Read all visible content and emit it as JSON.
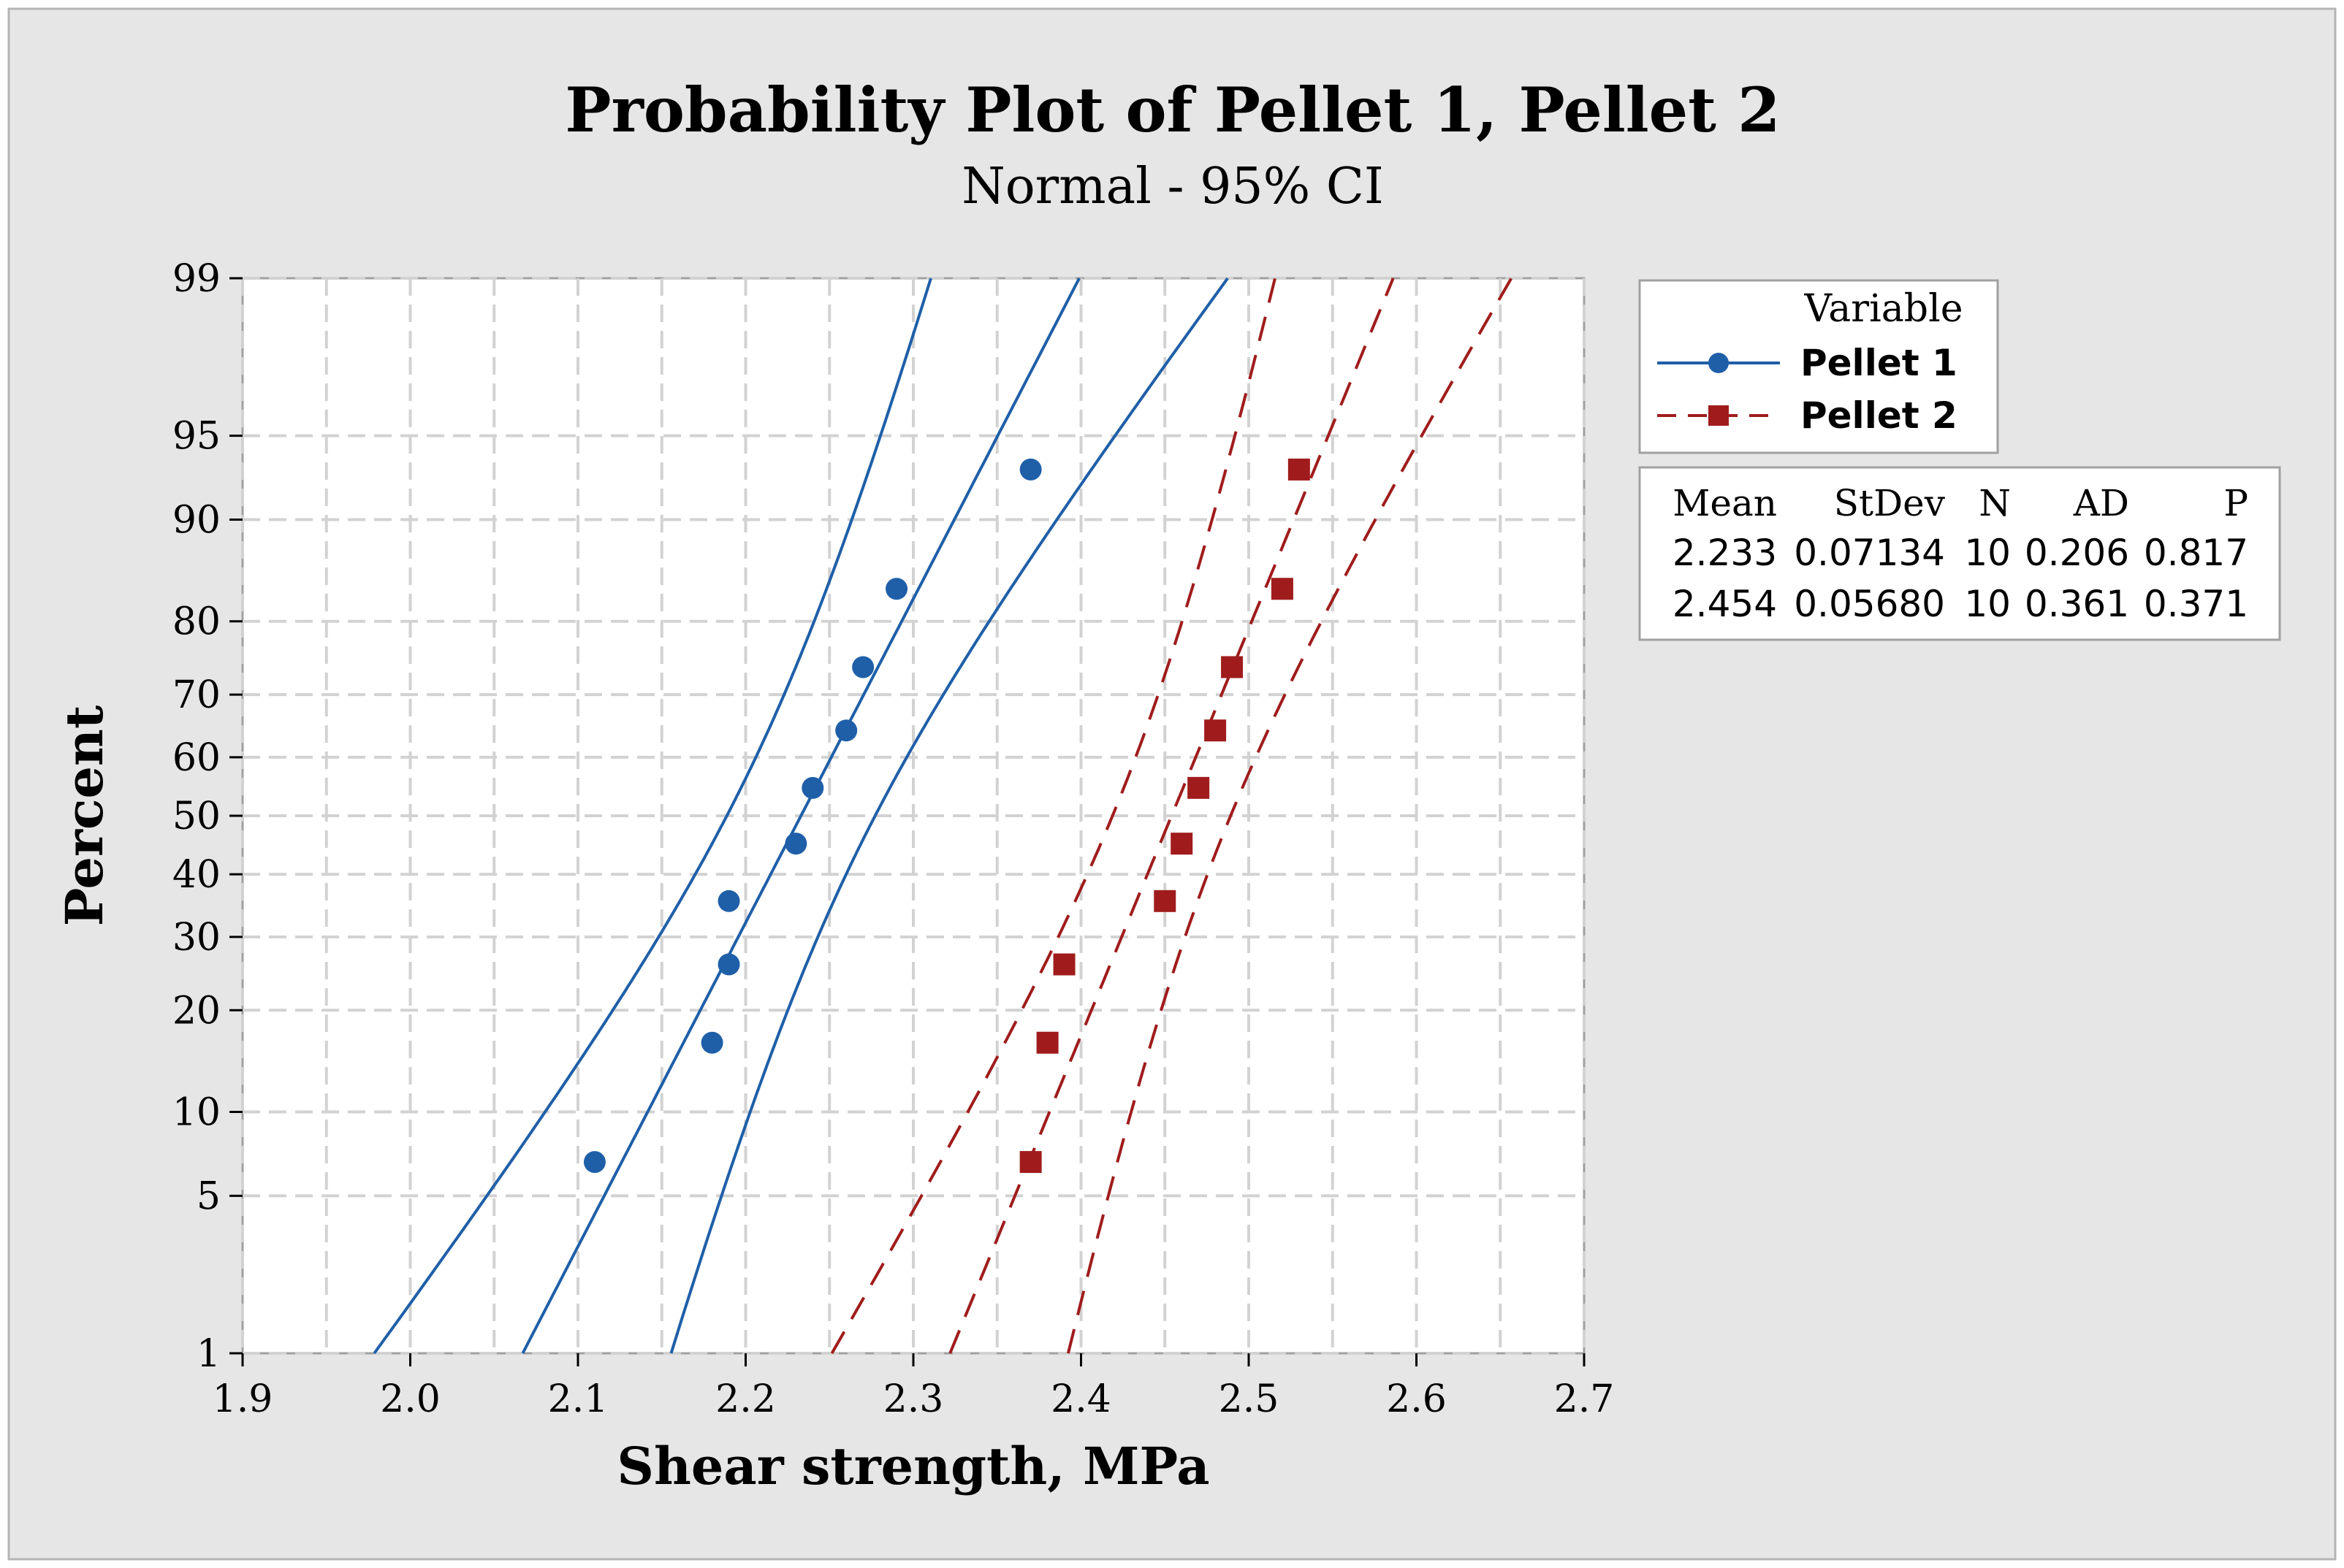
{
  "chart_data": {
    "type": "scatter",
    "title": "Probability Plot of Pellet 1, Pellet 2",
    "subtitle": "Normal - 95% CI",
    "xlabel": "Shear strength, MPa",
    "ylabel": "Percent",
    "xlim": [
      1.9,
      2.7
    ],
    "ylim": [
      1,
      99
    ],
    "y_scale": "normal-probability",
    "grid": true,
    "x_ticks": [
      "1.9",
      "2.0",
      "2.1",
      "2.2",
      "2.3",
      "2.4",
      "2.5",
      "2.6",
      "2.7"
    ],
    "y_ticks": [
      "1",
      "5",
      "10",
      "20",
      "30",
      "40",
      "50",
      "60",
      "70",
      "80",
      "90",
      "95",
      "99"
    ],
    "legend": {
      "title": "Variable",
      "position": "right",
      "entries": [
        "Pellet 1",
        "Pellet 2"
      ]
    },
    "series": [
      {
        "name": "Pellet 1",
        "color": "#1f5fa8",
        "marker": "circle",
        "line_style": "solid",
        "mean": 2.233,
        "stdev": 0.07134,
        "x": [
          2.11,
          2.18,
          2.19,
          2.19,
          2.23,
          2.24,
          2.26,
          2.27,
          2.29,
          2.37
        ],
        "percent": [
          6.7,
          16.3,
          26.0,
          35.6,
          45.2,
          54.8,
          64.4,
          74.0,
          83.7,
          93.3
        ]
      },
      {
        "name": "Pellet 2",
        "color": "#a01c1c",
        "marker": "square",
        "line_style": "dashed",
        "mean": 2.454,
        "stdev": 0.0568,
        "x": [
          2.37,
          2.38,
          2.39,
          2.45,
          2.46,
          2.47,
          2.48,
          2.49,
          2.52,
          2.53
        ],
        "percent": [
          6.7,
          16.3,
          26.0,
          35.6,
          45.2,
          54.8,
          64.4,
          74.0,
          83.7,
          93.3
        ]
      }
    ],
    "stats_table": {
      "headers": [
        "Mean",
        "StDev",
        "N",
        "AD",
        "P"
      ],
      "rows": [
        [
          "2.233",
          "0.07134",
          "10",
          "0.206",
          "0.817"
        ],
        [
          "2.454",
          "0.05680",
          "10",
          "0.361",
          "0.371"
        ]
      ]
    }
  }
}
